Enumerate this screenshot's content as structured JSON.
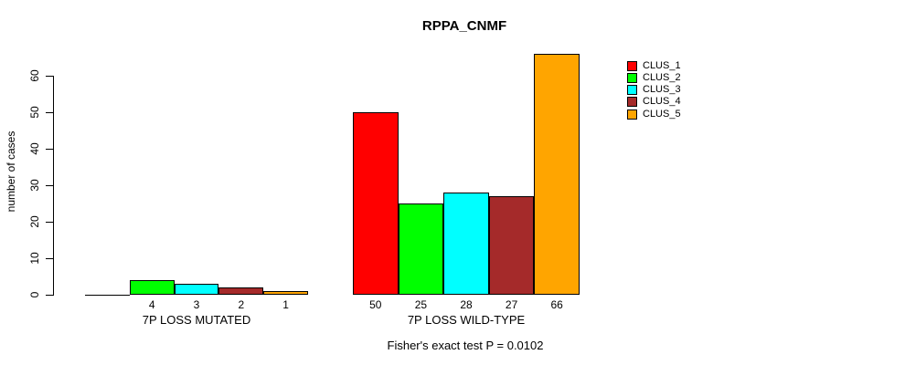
{
  "title": "RPPA_CNMF",
  "footer": "Fisher's exact test P = 0.0102",
  "chart_data": {
    "type": "bar",
    "title": "RPPA_CNMF",
    "xlabel": "",
    "ylabel": "number of cases",
    "ylim": [
      0,
      66
    ],
    "yticks": [
      0,
      10,
      20,
      30,
      40,
      50,
      60
    ],
    "grid": false,
    "legend_position": "right",
    "annotation": "Fisher's exact test P = 0.0102",
    "series": [
      {
        "name": "CLUS_1",
        "color": "#FF0000"
      },
      {
        "name": "CLUS_2",
        "color": "#00FF00"
      },
      {
        "name": "CLUS_3",
        "color": "#00FFFF"
      },
      {
        "name": "CLUS_4",
        "color": "#A52A2A"
      },
      {
        "name": "CLUS_5",
        "color": "#FFA500"
      }
    ],
    "groups": [
      {
        "label": "7P LOSS MUTATED",
        "values": [
          0,
          4,
          3,
          2,
          1
        ],
        "bar_labels": [
          "",
          "4",
          "3",
          "2",
          "1"
        ]
      },
      {
        "label": "7P LOSS WILD-TYPE",
        "values": [
          50,
          25,
          28,
          27,
          66
        ],
        "bar_labels": [
          "50",
          "25",
          "28",
          "27",
          "66"
        ]
      }
    ]
  }
}
